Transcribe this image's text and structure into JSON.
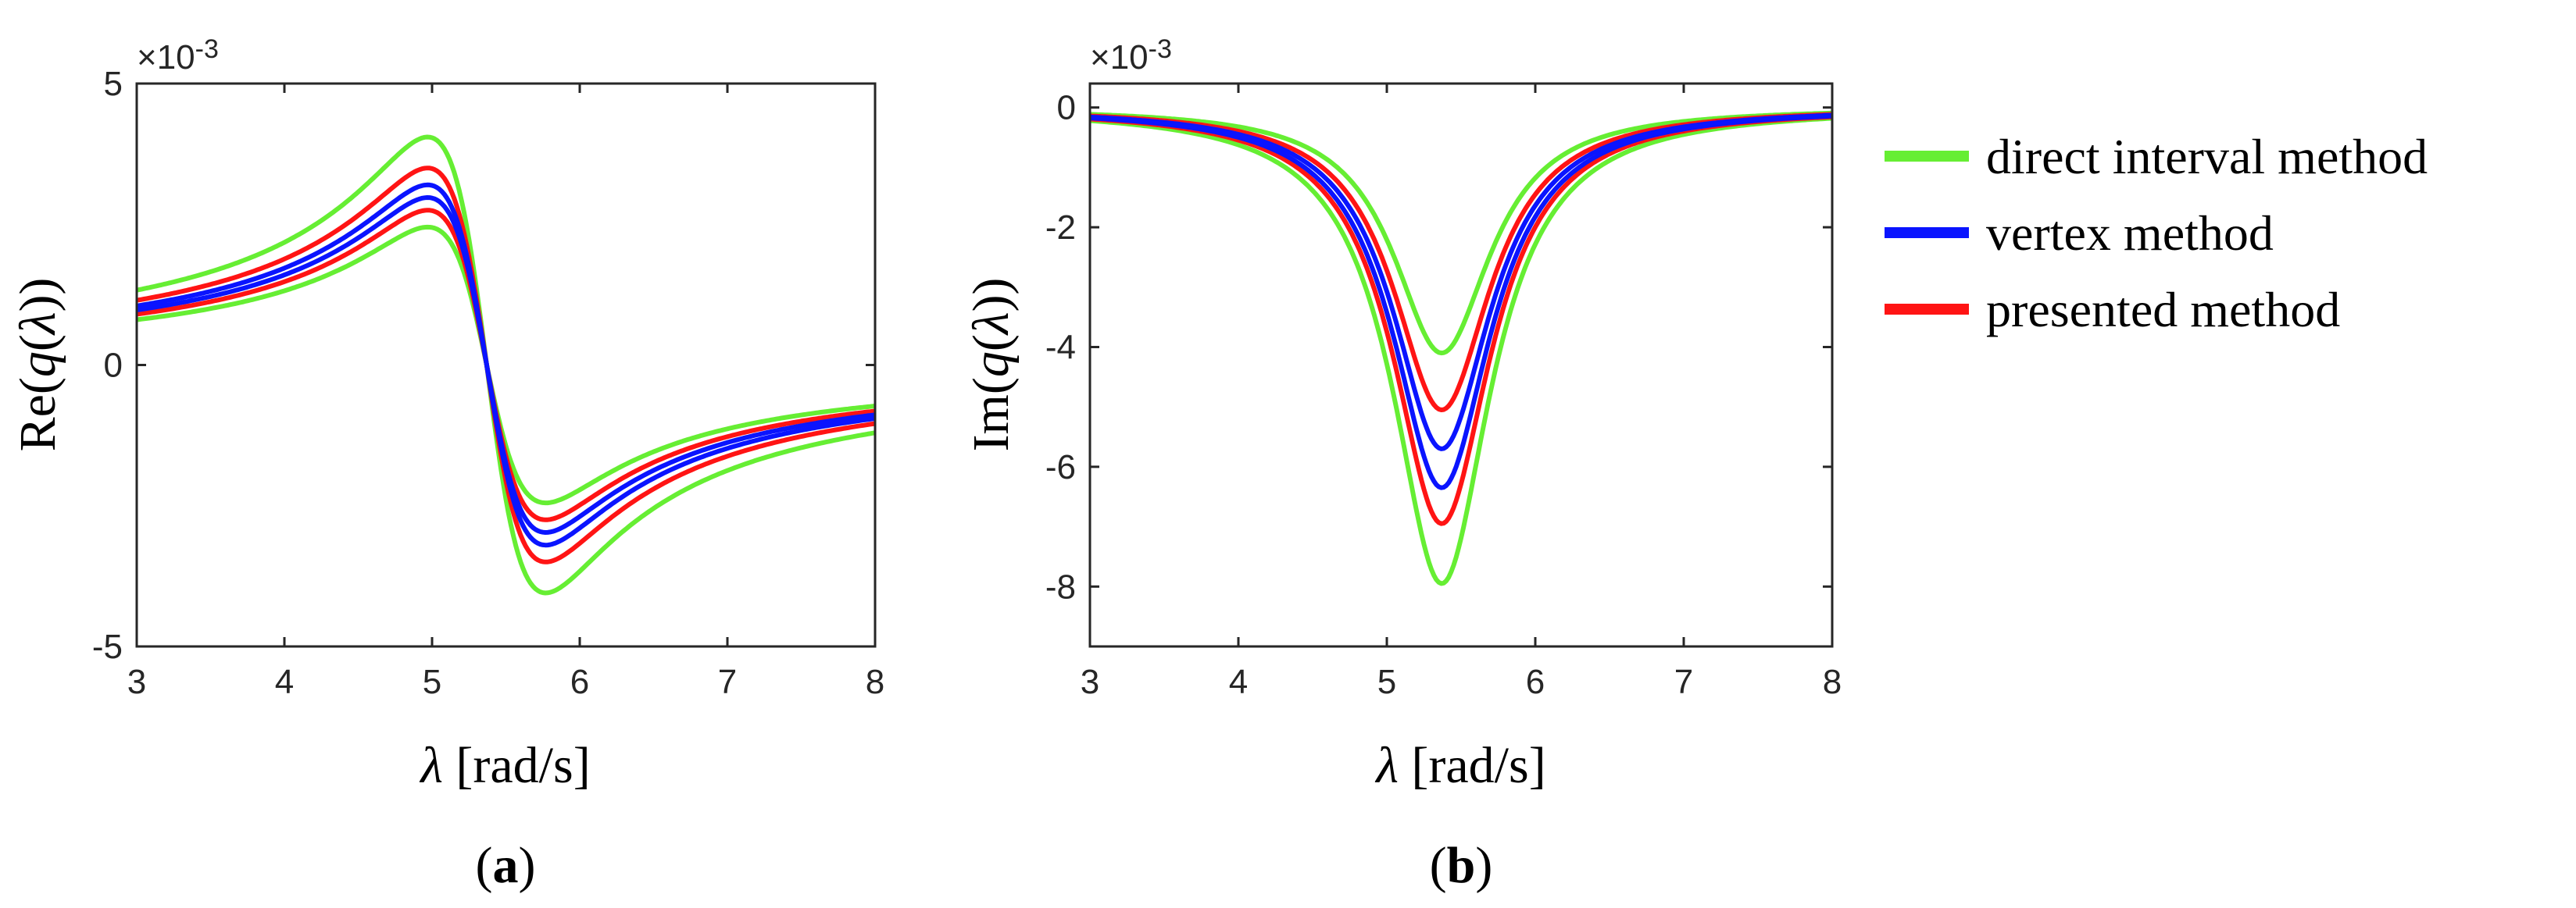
{
  "legend": {
    "items": [
      {
        "label": "direct interval method",
        "color": "#66ee33"
      },
      {
        "label": "vertex method",
        "color": "#0a14ff"
      },
      {
        "label": "presented method",
        "color": "#ff1414"
      }
    ]
  },
  "chart_data": [
    {
      "type": "line",
      "panel_label": "(a)",
      "xlabel": "λ [rad/s]",
      "ylabel": "Re(q(λ))",
      "exponent_label": "×10-3",
      "x_range": [
        3,
        8
      ],
      "y_range": [
        -5,
        5
      ],
      "x_ticks": [
        "3",
        "4",
        "5",
        "6",
        "7",
        "8"
      ],
      "y_ticks": [
        "-5",
        "0",
        "5"
      ],
      "resonance_center": 5.37,
      "series": [
        {
          "name": "direct interval method (upper)",
          "color": "#66ee33",
          "amplitude": 8.1
        },
        {
          "name": "direct interval method (lower)",
          "color": "#66ee33",
          "amplitude": 4.9
        },
        {
          "name": "presented method (upper)",
          "color": "#ff1414",
          "amplitude": 7.0
        },
        {
          "name": "presented method (lower)",
          "color": "#ff1414",
          "amplitude": 5.5
        },
        {
          "name": "vertex method (upper)",
          "color": "#0a14ff",
          "amplitude": 6.4
        },
        {
          "name": "vertex method (lower)",
          "color": "#0a14ff",
          "amplitude": 5.95
        }
      ]
    },
    {
      "type": "line",
      "panel_label": "(b)",
      "xlabel": "λ [rad/s]",
      "ylabel": "Im(q(λ))",
      "exponent_label": "×10-3",
      "x_range": [
        3,
        8
      ],
      "y_range": [
        -9,
        0.4
      ],
      "x_ticks": [
        "3",
        "4",
        "5",
        "6",
        "7",
        "8"
      ],
      "y_ticks": [
        "0",
        "-2",
        "-4",
        "-6",
        "-8"
      ],
      "resonance_center": 5.37,
      "series": [
        {
          "name": "direct interval method (upper)",
          "color": "#66ee33",
          "amplitude": 4.1
        },
        {
          "name": "direct interval method (lower)",
          "color": "#66ee33",
          "amplitude": 7.95
        },
        {
          "name": "presented method (upper)",
          "color": "#ff1414",
          "amplitude": 5.05
        },
        {
          "name": "presented method (lower)",
          "color": "#ff1414",
          "amplitude": 6.95
        },
        {
          "name": "vertex method (upper)",
          "color": "#0a14ff",
          "amplitude": 5.7
        },
        {
          "name": "vertex method (lower)",
          "color": "#0a14ff",
          "amplitude": 6.35
        }
      ]
    }
  ]
}
